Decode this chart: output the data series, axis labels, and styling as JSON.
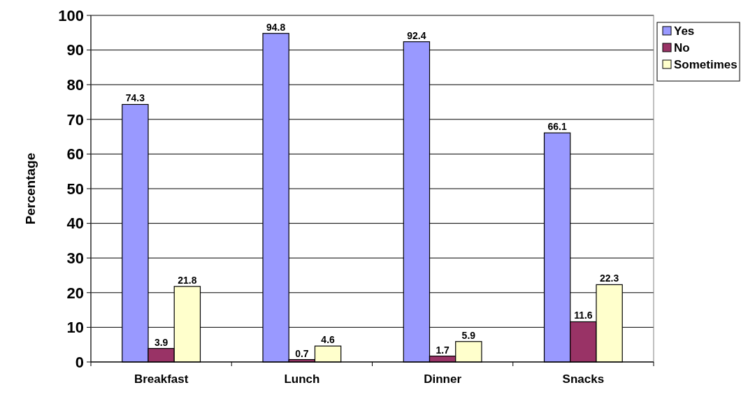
{
  "chart_data": {
    "type": "bar",
    "ylabel": "Percentage",
    "categories": [
      "Breakfast",
      "Lunch",
      "Dinner",
      "Snacks"
    ],
    "series": [
      {
        "name": "Yes",
        "color": "#9999ff",
        "values": [
          74.3,
          94.8,
          92.4,
          66.1
        ]
      },
      {
        "name": "No",
        "color": "#993366",
        "values": [
          3.9,
          0.7,
          1.7,
          11.6
        ]
      },
      {
        "name": "Sometimes",
        "color": "#ffffcc",
        "values": [
          21.8,
          4.6,
          5.9,
          22.3
        ]
      }
    ],
    "ylim": [
      0,
      100
    ],
    "yticks": [
      0,
      10,
      20,
      30,
      40,
      50,
      60,
      70,
      80,
      90,
      100
    ],
    "grid": "y",
    "legend": "right",
    "data_labels": true
  }
}
